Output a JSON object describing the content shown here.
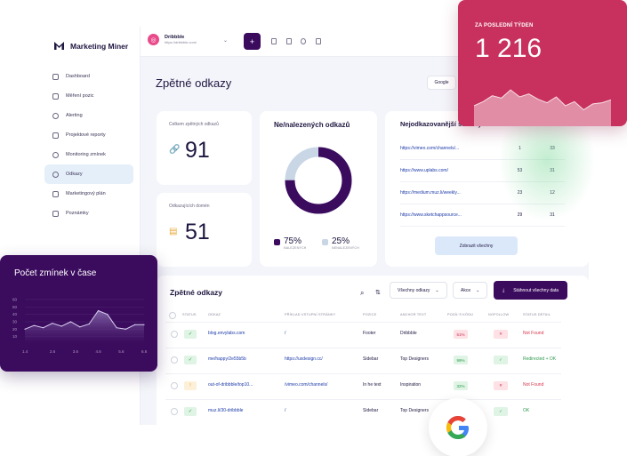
{
  "app": {
    "logo_text": "Marketing Miner"
  },
  "sidebar": {
    "items": [
      {
        "label": "Dashboard"
      },
      {
        "label": "Měření pozic"
      },
      {
        "label": "Alerting"
      },
      {
        "label": "Projektové reporty"
      },
      {
        "label": "Monitoring zmínek"
      },
      {
        "label": "Odkazy",
        "active": true
      },
      {
        "label": "Marketingový plán"
      },
      {
        "label": "Poznámky"
      }
    ]
  },
  "topbar": {
    "project_name": "Dribbble",
    "project_url": "https://dribbble.com/",
    "add_label": "+"
  },
  "page": {
    "title": "Zpětné odkazy",
    "google_btn": "Google"
  },
  "kpi": {
    "backlinks": {
      "label": "Celkem zpětných odkazů",
      "value": "91",
      "icon": "link-icon"
    },
    "domains": {
      "label": "Odkazujících domén",
      "value": "51",
      "icon": "calendar-icon"
    }
  },
  "donut": {
    "title": "Ne/nalezených odkazů",
    "found_value": "75%",
    "found_label": "NALEZENÝCH",
    "notfound_value": "25%",
    "notfound_label": "NENALEZENÝCH",
    "found_fraction": 0.75,
    "found_color": "#3b0b5e",
    "notfound_color": "#c9d6e6"
  },
  "pages": {
    "title": "Nejodkazovanější stránky",
    "rows": [
      {
        "url": "https://vimeo.com/channels/...",
        "a": "1",
        "b": "33"
      },
      {
        "url": "https://www.uplabs.com/",
        "a": "53",
        "b": "31"
      },
      {
        "url": "https://medium.muz.li/weekly...",
        "a": "23",
        "b": "12"
      },
      {
        "url": "https://www.sketchappsource...",
        "a": "29",
        "b": "31"
      }
    ],
    "show_all": "Zobrazit všechny"
  },
  "table": {
    "title": "Zpětné odkazy",
    "filter": "Všechny odkazy",
    "actions": "Akce",
    "download": "Stáhnout všechny data",
    "headers": [
      "STATUS",
      "ODKAZ",
      "PŘÍKLAD VSTUPNÍ STRÁNKY",
      "POZICE",
      "ANCHOR TEXT",
      "PODÍL'S KÓDU",
      "NOFOLLOW",
      "STATUS DETAIL"
    ],
    "rows": [
      {
        "status": "✓",
        "link": "blog.envylabs.com",
        "entry": "/",
        "position": "Footer",
        "anchor": "Dribbble",
        "share": "51%",
        "nofollow": "✕",
        "detail": "Not Found"
      },
      {
        "status": "✓",
        "link": "me/happy/2e55b5b",
        "entry": "https://uxdesign.cc/",
        "position": "Sidebar",
        "anchor": "Top Designers",
        "share": "99%",
        "nofollow": "✓",
        "detail": "Redirected + OK"
      },
      {
        "status": "!",
        "link": "out-of-dribbble/top10...",
        "entry": "/vimeo.com/channels/",
        "position": "In he text",
        "anchor": "Inspiration",
        "share": "32%",
        "nofollow": "✕",
        "detail": "Not Found"
      },
      {
        "status": "✓",
        "link": "muz.li/30-dribbble",
        "entry": "/",
        "position": "Sidebar",
        "anchor": "Top Designers",
        "share": "",
        "nofollow": "✓",
        "detail": "OK"
      }
    ]
  },
  "red_card": {
    "label": "ZA POSLEDNÍ TÝDEN",
    "value": "1 216",
    "trend": [
      0.35,
      0.42,
      0.52,
      0.48,
      0.62,
      0.5,
      0.55,
      0.46,
      0.4,
      0.5,
      0.35,
      0.42,
      0.28,
      0.38,
      0.4,
      0.45
    ]
  },
  "mention_chart": {
    "chart_data": {
      "type": "area",
      "title": "Počet zmínek v čase",
      "x": [
        1.4,
        1.8,
        2.2,
        2.6,
        3.0,
        3.4,
        3.8,
        4.2,
        4.6,
        5.0,
        5.4,
        5.8,
        6.2,
        6.6
      ],
      "x_ticks": [
        "1.4",
        "2.6",
        "3.6",
        "4.6",
        "5.6",
        "6.6"
      ],
      "y_ticks": [
        "60",
        "50",
        "40",
        "30",
        "20",
        "10"
      ],
      "ylim": [
        0,
        60
      ],
      "values": [
        20,
        25,
        22,
        28,
        24,
        30,
        23,
        27,
        45,
        40,
        22,
        20,
        26,
        26
      ]
    }
  }
}
